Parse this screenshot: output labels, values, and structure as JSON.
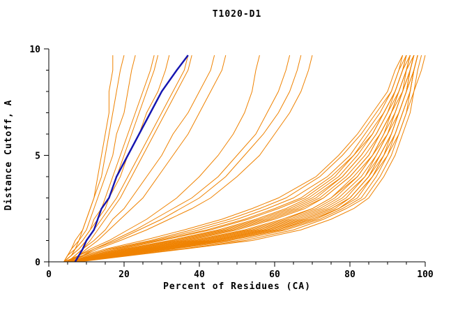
{
  "title": "T1020-D1",
  "chart_data": {
    "type": "line",
    "title": "T1020-D1",
    "xlabel": "Percent of Residues (CA)",
    "ylabel": "Distance Cutoff, A",
    "xlim": [
      0,
      100
    ],
    "ylim": [
      0,
      10
    ],
    "x_major_ticks": [
      0,
      20,
      40,
      60,
      80,
      100
    ],
    "x_minor_step": 5,
    "y_major_ticks": [
      0,
      5,
      10
    ],
    "y_minor_step": 1,
    "grid": false,
    "legend": "none",
    "colors": {
      "model": "#ef8200",
      "highlight": "#1515b0",
      "axis": "#000000"
    },
    "y_samples": [
      0,
      0.3,
      0.6,
      1,
      1.5,
      2,
      2.5,
      3,
      4,
      5,
      6,
      7,
      8,
      9,
      9.7
    ],
    "series": [
      {
        "x": [
          5,
          12,
          20,
          32,
          45,
          55,
          63,
          69,
          77,
          82,
          86,
          89,
          92,
          94,
          95
        ]
      },
      {
        "x": [
          5,
          14,
          24,
          38,
          52,
          62,
          70,
          75,
          82,
          86,
          89,
          91,
          93,
          95,
          96
        ]
      },
      {
        "x": [
          6,
          16,
          28,
          44,
          58,
          68,
          75,
          80,
          85,
          88,
          91,
          93,
          95,
          96,
          97
        ]
      },
      {
        "x": [
          4,
          10,
          17,
          28,
          40,
          50,
          58,
          65,
          74,
          80,
          84,
          88,
          91,
          93,
          94
        ]
      },
      {
        "x": [
          5,
          13,
          22,
          35,
          48,
          58,
          66,
          72,
          79,
          84,
          88,
          91,
          93,
          95,
          96
        ]
      },
      {
        "x": [
          6,
          18,
          30,
          46,
          60,
          70,
          77,
          81,
          86,
          89,
          92,
          94,
          96,
          97,
          98
        ]
      },
      {
        "x": [
          5,
          11,
          19,
          30,
          43,
          53,
          61,
          68,
          76,
          81,
          86,
          89,
          92,
          94,
          95
        ]
      },
      {
        "x": [
          6,
          15,
          26,
          41,
          55,
          65,
          72,
          77,
          83,
          87,
          90,
          92,
          94,
          96,
          97
        ]
      },
      {
        "x": [
          7,
          20,
          33,
          50,
          63,
          72,
          78,
          83,
          87,
          90,
          93,
          95,
          96,
          97,
          98
        ]
      },
      {
        "x": [
          5,
          12,
          21,
          34,
          47,
          57,
          65,
          71,
          78,
          83,
          87,
          90,
          93,
          95,
          96
        ]
      },
      {
        "x": [
          6,
          17,
          29,
          45,
          59,
          69,
          76,
          80,
          85,
          89,
          91,
          93,
          95,
          97,
          98
        ]
      },
      {
        "x": [
          5,
          14,
          25,
          40,
          54,
          64,
          71,
          76,
          82,
          86,
          90,
          92,
          94,
          96,
          97
        ]
      },
      {
        "x": [
          4,
          9,
          15,
          25,
          36,
          46,
          54,
          61,
          71,
          77,
          82,
          86,
          90,
          92,
          94
        ]
      },
      {
        "x": [
          6,
          16,
          27,
          43,
          57,
          67,
          74,
          79,
          84,
          88,
          91,
          93,
          95,
          96,
          97
        ]
      },
      {
        "x": [
          7,
          19,
          32,
          48,
          62,
          71,
          77,
          82,
          86,
          90,
          92,
          94,
          96,
          97,
          98
        ]
      },
      {
        "x": [
          5,
          13,
          23,
          37,
          50,
          60,
          68,
          73,
          80,
          85,
          88,
          91,
          93,
          95,
          96
        ]
      },
      {
        "x": [
          6,
          15,
          26,
          42,
          56,
          66,
          73,
          78,
          84,
          87,
          90,
          93,
          95,
          96,
          97
        ]
      },
      {
        "x": [
          5,
          11,
          18,
          29,
          42,
          52,
          60,
          67,
          75,
          81,
          85,
          89,
          92,
          94,
          95
        ]
      },
      {
        "x": [
          6,
          18,
          31,
          47,
          61,
          70,
          77,
          81,
          86,
          89,
          92,
          94,
          96,
          97,
          98
        ]
      },
      {
        "x": [
          5,
          12,
          20,
          33,
          46,
          56,
          64,
          70,
          78,
          83,
          87,
          90,
          92,
          94,
          96
        ]
      },
      {
        "x": [
          7,
          21,
          35,
          52,
          65,
          73,
          79,
          84,
          88,
          91,
          93,
          95,
          97,
          98,
          99
        ]
      },
      {
        "x": [
          4,
          10,
          16,
          27,
          38,
          48,
          56,
          63,
          72,
          78,
          83,
          87,
          91,
          93,
          95
        ]
      },
      {
        "x": [
          6,
          14,
          24,
          39,
          53,
          63,
          70,
          75,
          81,
          86,
          89,
          92,
          94,
          95,
          97
        ]
      },
      {
        "x": [
          5,
          16,
          28,
          44,
          58,
          68,
          75,
          80,
          85,
          88,
          91,
          93,
          95,
          97,
          98
        ]
      },
      {
        "x": [
          8,
          22,
          36,
          54,
          67,
          75,
          81,
          85,
          89,
          92,
          94,
          96,
          97,
          99,
          100
        ]
      },
      {
        "x": [
          6,
          13,
          22,
          36,
          49,
          59,
          67,
          73,
          80,
          85,
          88,
          91,
          94,
          96,
          97
        ]
      },
      {
        "x": [
          5,
          9,
          13,
          19,
          26,
          32,
          38,
          43,
          50,
          56,
          60,
          64,
          67,
          69,
          70
        ]
      },
      {
        "x": [
          5,
          8,
          12,
          17,
          23,
          28,
          33,
          38,
          45,
          50,
          55,
          58,
          61,
          63,
          64
        ]
      },
      {
        "x": [
          4,
          8,
          11,
          16,
          21,
          26,
          30,
          34,
          40,
          45,
          49,
          52,
          54,
          55,
          56
        ]
      },
      {
        "x": [
          5,
          9,
          12,
          18,
          24,
          30,
          35,
          40,
          47,
          52,
          57,
          61,
          64,
          66,
          67
        ]
      },
      {
        "x": [
          4,
          6,
          8,
          10,
          12,
          13,
          15,
          16,
          18,
          20,
          22,
          24,
          26,
          28,
          29
        ]
      },
      {
        "x": [
          4,
          6,
          7,
          9,
          11,
          12,
          14,
          15,
          17,
          19,
          21,
          23,
          25,
          27,
          28
        ]
      },
      {
        "x": [
          5,
          7,
          9,
          11,
          13,
          15,
          17,
          19,
          22,
          25,
          28,
          31,
          34,
          37,
          38
        ]
      },
      {
        "x": [
          4,
          5,
          7,
          8,
          10,
          11,
          12,
          13,
          15,
          17,
          18,
          20,
          21,
          22,
          23
        ]
      },
      {
        "x": [
          4,
          6,
          8,
          10,
          12,
          14,
          16,
          18,
          21,
          24,
          27,
          30,
          33,
          36,
          37
        ]
      },
      {
        "x": [
          5,
          7,
          9,
          12,
          15,
          17,
          20,
          22,
          26,
          30,
          33,
          37,
          40,
          43,
          44
        ]
      },
      {
        "x": [
          4,
          5,
          6,
          8,
          9,
          10,
          11,
          12,
          14,
          15,
          16,
          17,
          18,
          19,
          20
        ]
      },
      {
        "x": [
          4,
          5,
          6,
          7,
          9,
          10,
          11,
          12,
          13,
          14,
          15,
          16,
          16,
          17,
          17
        ]
      },
      {
        "x": [
          5,
          8,
          10,
          13,
          16,
          19,
          22,
          25,
          29,
          33,
          37,
          40,
          43,
          46,
          47
        ]
      },
      {
        "x": [
          4,
          6,
          7,
          9,
          11,
          13,
          14,
          16,
          19,
          21,
          24,
          26,
          29,
          31,
          32
        ]
      }
    ],
    "highlight_series": {
      "x": [
        7,
        8,
        9,
        10,
        12,
        13,
        14,
        16,
        18,
        21,
        24,
        27,
        30,
        34,
        37
      ]
    }
  }
}
